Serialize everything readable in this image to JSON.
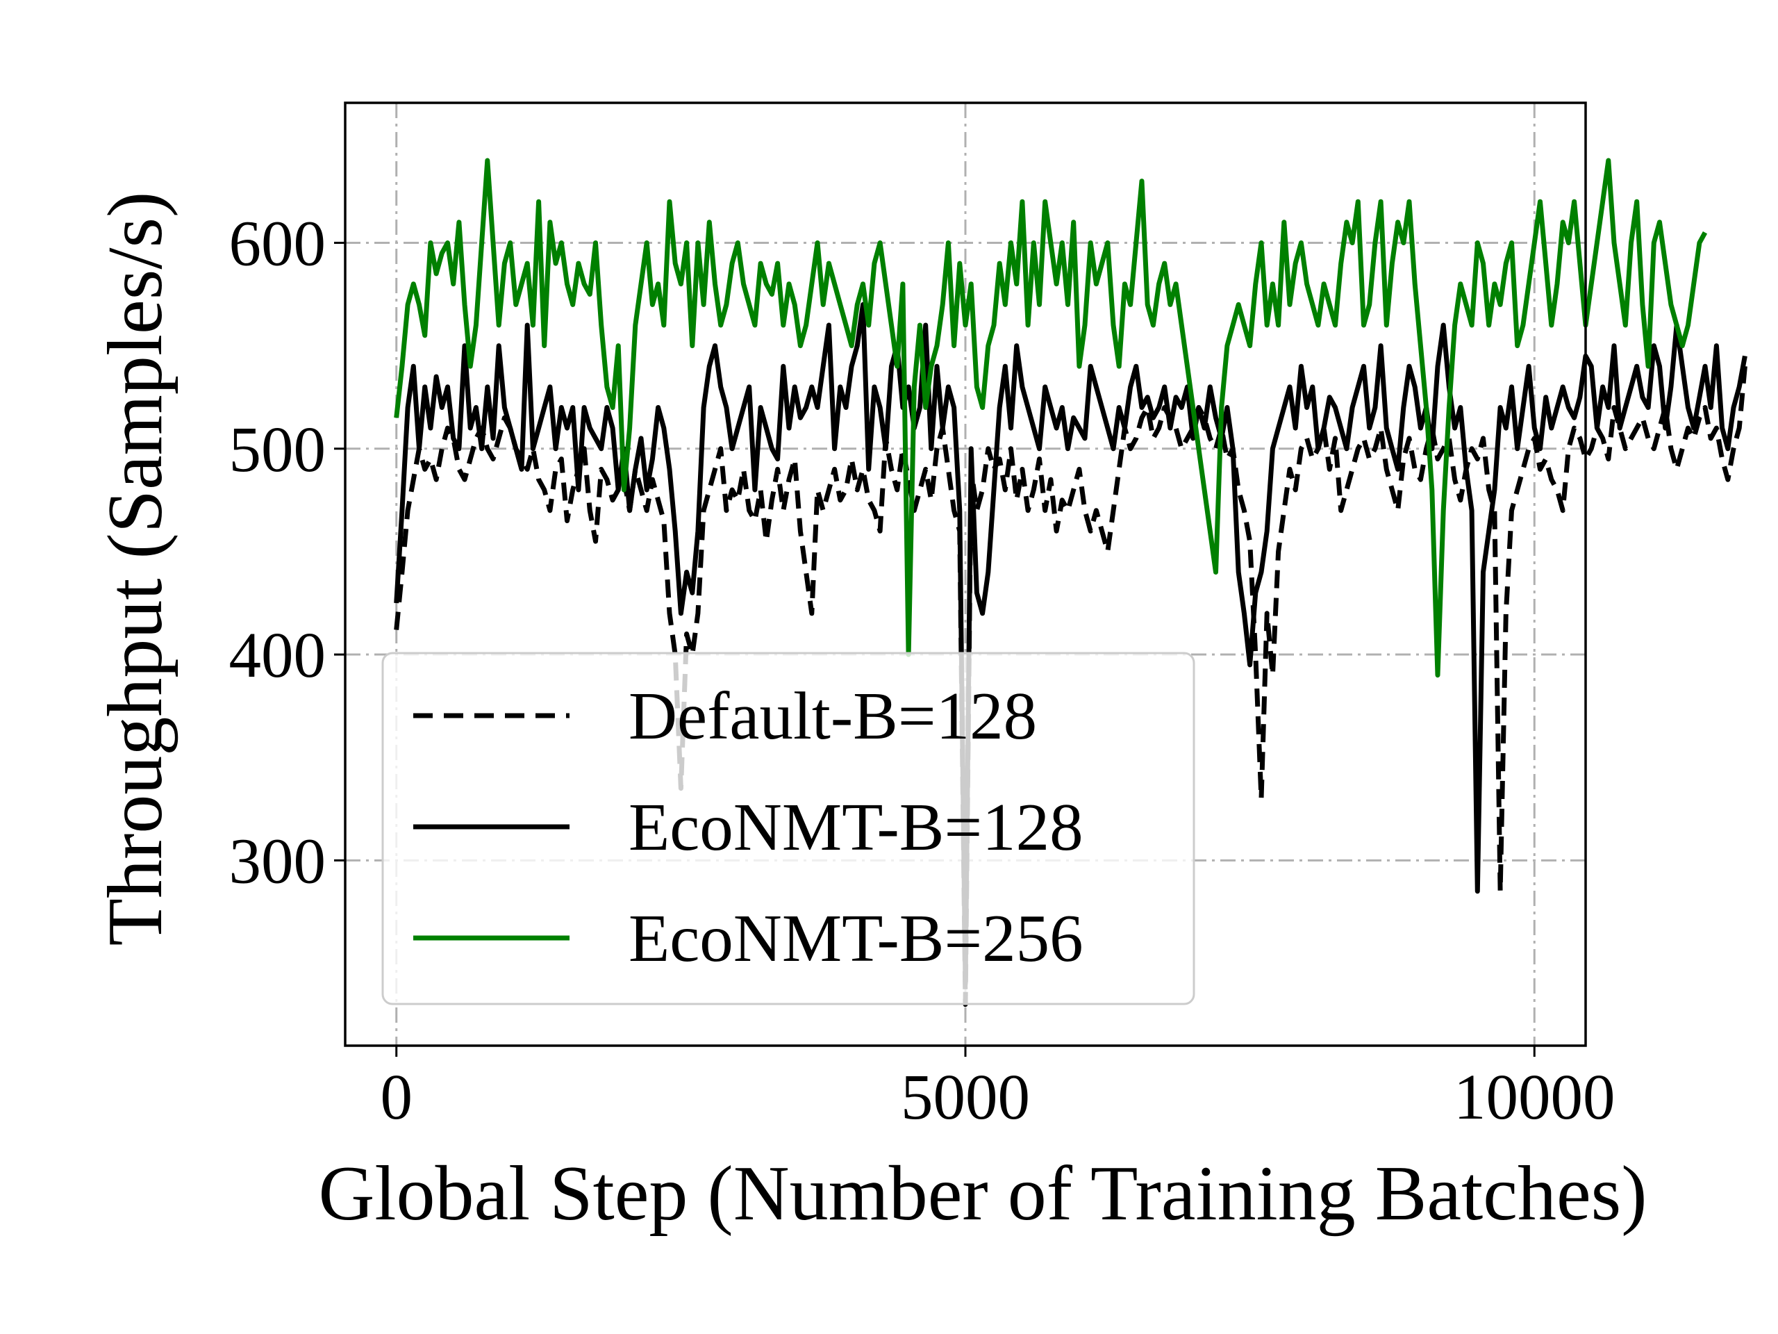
{
  "chart_data": {
    "type": "line",
    "title": "",
    "xlabel": "Global Step (Number of Training Batches)",
    "ylabel": "Throughput (Samples/s)",
    "xlim": [
      -450,
      10450
    ],
    "ylim": [
      210,
      668
    ],
    "xticks": [
      0,
      5000,
      10000
    ],
    "xtick_labels": [
      "0",
      "5000",
      "10000"
    ],
    "yticks": [
      300,
      400,
      500,
      600
    ],
    "ytick_labels": [
      "300",
      "400",
      "500",
      "600"
    ],
    "grid": true,
    "legend_position": "lower-left",
    "x_start": 0,
    "x_step": 50,
    "series": [
      {
        "name": "Default-B=128",
        "color": "#000000",
        "style": "dashed",
        "values": [
          412,
          440,
          470,
          485,
          500,
          490,
          495,
          485,
          500,
          510,
          505,
          490,
          485,
          495,
          505,
          510,
          500,
          495,
          505,
          515,
          510,
          500,
          495,
          490,
          500,
          485,
          480,
          470,
          490,
          495,
          465,
          480,
          490,
          500,
          470,
          455,
          490,
          485,
          475,
          480,
          485,
          470,
          490,
          480,
          470,
          485,
          475,
          465,
          420,
          400,
          335,
          410,
          400,
          420,
          470,
          480,
          490,
          500,
          470,
          480,
          475,
          490,
          470,
          465,
          480,
          455,
          475,
          490,
          470,
          485,
          495,
          460,
          440,
          420,
          480,
          470,
          480,
          490,
          475,
          480,
          495,
          480,
          490,
          475,
          470,
          460,
          505,
          490,
          480,
          500,
          485,
          470,
          480,
          490,
          475,
          500,
          510,
          490,
          470,
          460,
          230,
          490,
          470,
          480,
          500,
          490,
          495,
          480,
          500,
          475,
          490,
          470,
          480,
          495,
          470,
          485,
          460,
          475,
          470,
          480,
          490,
          470,
          460,
          470,
          460,
          450,
          470,
          490,
          510,
          500,
          505,
          515,
          520,
          505,
          510,
          520,
          515,
          510,
          500,
          505,
          510,
          520,
          515,
          505,
          500,
          510,
          495,
          500,
          480,
          470,
          455,
          400,
          330,
          420,
          390,
          450,
          470,
          490,
          480,
          500,
          505,
          495,
          500,
          510,
          490,
          505,
          470,
          480,
          490,
          500,
          505,
          495,
          500,
          510,
          490,
          480,
          470,
          495,
          505,
          490,
          485,
          500,
          510,
          495,
          500,
          505,
          485,
          475,
          490,
          500,
          495,
          505,
          480,
          470,
          285,
          420,
          470,
          480,
          490,
          500,
          505,
          490,
          495,
          485,
          480,
          470,
          500,
          510,
          505,
          495,
          500,
          510,
          505,
          495,
          520,
          510,
          500,
          505,
          510,
          515,
          505,
          500,
          510,
          520,
          500,
          490,
          500,
          510,
          505,
          515,
          520,
          505,
          510,
          495,
          485,
          500,
          510,
          540
        ]
      },
      {
        "name": "EcoNMT-B=128",
        "color": "#000000",
        "style": "solid",
        "values": [
          425,
          470,
          520,
          540,
          500,
          530,
          510,
          535,
          520,
          530,
          505,
          500,
          550,
          510,
          520,
          500,
          530,
          505,
          550,
          520,
          510,
          500,
          490,
          560,
          500,
          510,
          520,
          530,
          500,
          520,
          510,
          520,
          480,
          520,
          510,
          505,
          500,
          520,
          510,
          480,
          500,
          470,
          490,
          505,
          480,
          495,
          520,
          510,
          490,
          460,
          420,
          440,
          430,
          460,
          520,
          540,
          550,
          530,
          520,
          500,
          510,
          520,
          530,
          480,
          520,
          510,
          500,
          495,
          540,
          510,
          530,
          515,
          520,
          530,
          520,
          540,
          560,
          500,
          530,
          520,
          540,
          550,
          570,
          490,
          530,
          520,
          500,
          540,
          550,
          520,
          530,
          510,
          520,
          560,
          500,
          540,
          510,
          530,
          520,
          470,
          240,
          500,
          430,
          420,
          440,
          480,
          520,
          540,
          510,
          550,
          530,
          520,
          510,
          500,
          530,
          520,
          510,
          520,
          500,
          515,
          510,
          505,
          540,
          530,
          520,
          510,
          500,
          520,
          510,
          530,
          540,
          520,
          525,
          515,
          520,
          530,
          510,
          525,
          520,
          530,
          505,
          520,
          510,
          530,
          515,
          505,
          520,
          500,
          440,
          420,
          395,
          430,
          440,
          460,
          500,
          510,
          520,
          530,
          510,
          540,
          520,
          530,
          500,
          510,
          525,
          520,
          510,
          500,
          520,
          530,
          540,
          510,
          520,
          550,
          510,
          500,
          490,
          520,
          540,
          530,
          510,
          520,
          500,
          540,
          560,
          530,
          510,
          520,
          490,
          470,
          285,
          440,
          460,
          480,
          520,
          510,
          530,
          500,
          520,
          540,
          510,
          500,
          525,
          510,
          520,
          530,
          520,
          515,
          525,
          545,
          540,
          510,
          530,
          520,
          550,
          510,
          520,
          530,
          540,
          525,
          520,
          550,
          540,
          510,
          530,
          560,
          540,
          520,
          510,
          525,
          540,
          520,
          550,
          510,
          500,
          520,
          530,
          545
        ]
      },
      {
        "name": "EcoNMT-B=256",
        "color": "#008000",
        "style": "solid",
        "values": [
          515,
          540,
          570,
          580,
          570,
          555,
          600,
          585,
          595,
          600,
          580,
          610,
          570,
          540,
          560,
          600,
          640,
          600,
          560,
          590,
          600,
          570,
          580,
          590,
          560,
          620,
          550,
          610,
          590,
          600,
          580,
          570,
          590,
          580,
          575,
          600,
          560,
          530,
          520,
          550,
          480,
          510,
          560,
          580,
          600,
          570,
          580,
          560,
          620,
          590,
          580,
          600,
          550,
          600,
          570,
          610,
          580,
          560,
          570,
          590,
          600,
          580,
          570,
          560,
          590,
          580,
          575,
          590,
          560,
          580,
          570,
          550,
          560,
          580,
          600,
          570,
          590,
          580,
          570,
          560,
          550,
          570,
          580,
          560,
          590,
          600,
          580,
          560,
          540,
          580,
          400,
          530,
          560,
          520,
          540,
          550,
          570,
          600,
          550,
          590,
          560,
          580,
          530,
          520,
          550,
          560,
          590,
          570,
          600,
          580,
          620,
          560,
          600,
          570,
          620,
          600,
          580,
          600,
          570,
          610,
          540,
          560,
          600,
          580,
          590,
          600,
          560,
          540,
          580,
          570,
          600,
          630,
          570,
          560,
          580,
          590,
          570,
          580,
          560,
          540,
          520,
          500,
          480,
          460,
          440,
          520,
          550,
          560,
          570,
          560,
          550,
          580,
          600,
          560,
          580,
          560,
          610,
          570,
          590,
          600,
          580,
          570,
          560,
          580,
          570,
          560,
          590,
          610,
          600,
          620,
          560,
          570,
          600,
          620,
          560,
          590,
          610,
          600,
          620,
          580,
          550,
          520,
          480,
          390,
          470,
          520,
          560,
          580,
          570,
          560,
          600,
          590,
          560,
          580,
          570,
          590,
          600,
          550,
          560,
          580,
          600,
          620,
          590,
          560,
          580,
          610,
          600,
          620,
          590,
          560,
          580,
          600,
          620,
          640,
          600,
          580,
          560,
          600,
          620,
          570,
          540,
          600,
          610,
          590,
          570,
          560,
          550,
          560,
          580,
          600,
          605
        ]
      }
    ]
  }
}
